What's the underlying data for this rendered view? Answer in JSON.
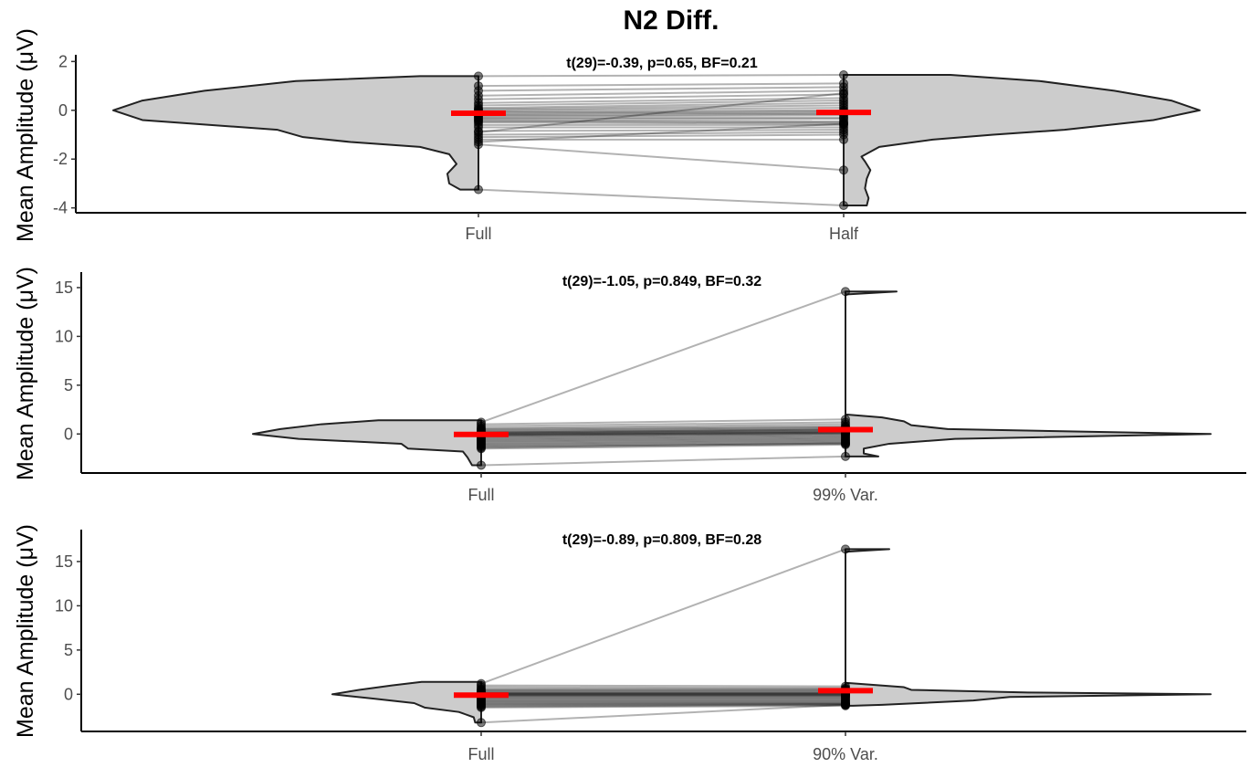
{
  "figure": {
    "title": "N2 Diff."
  },
  "chart_data": [
    {
      "type": "scatter",
      "subtype": "paired split-violin",
      "ylabel": "Mean Amplitude (μV)",
      "annotation": "t(29)=-0.39, p=0.65, BF=0.21",
      "categories": [
        "Full",
        "Half"
      ],
      "yticks": [
        -4,
        -2,
        0,
        2
      ],
      "ylim": [
        -4.2,
        2.2
      ],
      "means": [
        -0.12,
        -0.09
      ],
      "pairs": [
        [
          1.4,
          1.45
        ],
        [
          1.0,
          1.1
        ],
        [
          0.8,
          0.95
        ],
        [
          0.6,
          0.8
        ],
        [
          0.45,
          0.65
        ],
        [
          0.3,
          0.5
        ],
        [
          0.2,
          0.4
        ],
        [
          0.1,
          0.3
        ],
        [
          0.05,
          0.2
        ],
        [
          0.0,
          0.1
        ],
        [
          -0.05,
          0.0
        ],
        [
          -0.1,
          -0.05
        ],
        [
          -0.15,
          -0.1
        ],
        [
          -0.2,
          -0.15
        ],
        [
          -0.25,
          -0.2
        ],
        [
          -0.3,
          -0.3
        ],
        [
          -0.35,
          -0.35
        ],
        [
          -0.4,
          -0.45
        ],
        [
          -0.45,
          -0.5
        ],
        [
          -0.5,
          -0.55
        ],
        [
          -0.6,
          -0.6
        ],
        [
          -0.7,
          -0.7
        ],
        [
          -0.85,
          -0.8
        ],
        [
          -1.0,
          -0.9
        ],
        [
          -1.1,
          -1.0
        ],
        [
          -1.2,
          -1.2
        ],
        [
          -1.3,
          -0.55
        ],
        [
          -1.4,
          -2.45
        ],
        [
          -0.9,
          0.7
        ],
        [
          -3.25,
          -3.9
        ]
      ],
      "violin_left": [
        [
          1.4,
          0.16
        ],
        [
          1.2,
          0.5
        ],
        [
          0.8,
          0.75
        ],
        [
          0.4,
          0.92
        ],
        [
          0.0,
          1.0
        ],
        [
          -0.4,
          0.92
        ],
        [
          -0.8,
          0.55
        ],
        [
          -1.1,
          0.48
        ],
        [
          -1.3,
          0.35
        ],
        [
          -1.5,
          0.16
        ],
        [
          -1.8,
          0.08
        ],
        [
          -2.2,
          0.06
        ],
        [
          -2.6,
          0.085
        ],
        [
          -3.0,
          0.08
        ],
        [
          -3.25,
          0.05
        ]
      ],
      "violin_right": [
        [
          1.45,
          0.3
        ],
        [
          1.2,
          0.55
        ],
        [
          0.8,
          0.76
        ],
        [
          0.4,
          0.92
        ],
        [
          0.0,
          1.0
        ],
        [
          -0.4,
          0.87
        ],
        [
          -0.8,
          0.62
        ],
        [
          -1.0,
          0.42
        ],
        [
          -1.2,
          0.25
        ],
        [
          -1.5,
          0.1
        ],
        [
          -1.9,
          0.05
        ],
        [
          -2.1,
          0.06
        ],
        [
          -2.45,
          0.075
        ],
        [
          -2.8,
          0.065
        ],
        [
          -3.2,
          0.06
        ],
        [
          -3.6,
          0.07
        ],
        [
          -3.9,
          0.065
        ]
      ]
    },
    {
      "type": "scatter",
      "subtype": "paired split-violin",
      "ylabel": "Mean Amplitude (μV)",
      "annotation": "t(29)=-1.05, p=0.849, BF=0.32",
      "categories": [
        "Full",
        "99% Var."
      ],
      "yticks": [
        0,
        5,
        10,
        15
      ],
      "ylim": [
        -4.0,
        16.4
      ],
      "means": [
        -0.05,
        0.45
      ],
      "pairs": [
        [
          1.2,
          14.6
        ],
        [
          1.0,
          1.5
        ],
        [
          0.8,
          1.2
        ],
        [
          0.6,
          1.0
        ],
        [
          0.5,
          0.8
        ],
        [
          0.4,
          0.7
        ],
        [
          0.3,
          0.6
        ],
        [
          0.2,
          0.5
        ],
        [
          0.15,
          0.45
        ],
        [
          0.1,
          0.4
        ],
        [
          0.05,
          0.3
        ],
        [
          0.0,
          0.25
        ],
        [
          -0.05,
          0.2
        ],
        [
          -0.1,
          0.15
        ],
        [
          -0.15,
          0.1
        ],
        [
          -0.2,
          0.05
        ],
        [
          -0.3,
          0.0
        ],
        [
          -0.4,
          -0.1
        ],
        [
          -0.5,
          -0.2
        ],
        [
          -0.6,
          -0.3
        ],
        [
          -0.7,
          -0.4
        ],
        [
          -0.8,
          -0.5
        ],
        [
          -0.9,
          -0.6
        ],
        [
          -1.0,
          -0.7
        ],
        [
          -1.1,
          -0.8
        ],
        [
          -1.2,
          -0.9
        ],
        [
          -1.3,
          -1.0
        ],
        [
          -1.4,
          -0.95
        ],
        [
          -1.5,
          -1.1
        ],
        [
          -3.2,
          -2.3
        ]
      ],
      "violin_left": [
        [
          1.4,
          0.45
        ],
        [
          1.0,
          0.7
        ],
        [
          0.5,
          0.88
        ],
        [
          0.0,
          1.0
        ],
        [
          -0.5,
          0.8
        ],
        [
          -1.0,
          0.35
        ],
        [
          -1.5,
          0.32
        ],
        [
          -1.8,
          0.08
        ],
        [
          -2.4,
          0.06
        ],
        [
          -3.2,
          0.04
        ]
      ],
      "violin_right": [
        [
          14.6,
          0.14
        ],
        [
          14.3,
          0.0
        ],
        [
          2.0,
          0.0
        ],
        [
          1.7,
          0.1
        ],
        [
          1.3,
          0.16
        ],
        [
          0.9,
          0.18
        ],
        [
          0.5,
          0.28
        ],
        [
          0.0,
          1.0
        ],
        [
          -0.5,
          0.3
        ],
        [
          -1.0,
          0.12
        ],
        [
          -1.5,
          0.05
        ],
        [
          -2.0,
          0.05
        ],
        [
          -2.3,
          0.09
        ]
      ]
    },
    {
      "type": "scatter",
      "subtype": "paired split-violin",
      "ylabel": "Mean Amplitude (μV)",
      "annotation": "t(29)=-0.89, p=0.809, BF=0.28",
      "categories": [
        "Full",
        "90% Var."
      ],
      "yticks": [
        0,
        5,
        10,
        15
      ],
      "ylim": [
        -4.2,
        18.4
      ],
      "means": [
        -0.1,
        0.4
      ],
      "pairs": [
        [
          1.2,
          16.4
        ],
        [
          1.0,
          0.9
        ],
        [
          0.8,
          0.7
        ],
        [
          0.6,
          0.6
        ],
        [
          0.5,
          0.5
        ],
        [
          0.4,
          0.4
        ],
        [
          0.3,
          0.3
        ],
        [
          0.2,
          0.2
        ],
        [
          0.15,
          0.15
        ],
        [
          0.1,
          0.1
        ],
        [
          0.05,
          0.05
        ],
        [
          0.0,
          0.0
        ],
        [
          -0.05,
          -0.05
        ],
        [
          -0.1,
          -0.1
        ],
        [
          -0.15,
          -0.15
        ],
        [
          -0.2,
          -0.2
        ],
        [
          -0.3,
          -0.3
        ],
        [
          -0.4,
          -0.4
        ],
        [
          -0.5,
          -0.5
        ],
        [
          -0.6,
          -0.6
        ],
        [
          -0.7,
          -0.7
        ],
        [
          -0.8,
          -0.8
        ],
        [
          -0.9,
          -0.9
        ],
        [
          -1.0,
          -1.0
        ],
        [
          -1.1,
          -1.05
        ],
        [
          -1.2,
          -1.1
        ],
        [
          -1.3,
          -1.15
        ],
        [
          -1.4,
          -1.2
        ],
        [
          -1.5,
          -1.3
        ],
        [
          -3.2,
          -1.2
        ]
      ],
      "violin_left": [
        [
          1.4,
          0.4
        ],
        [
          1.0,
          0.6
        ],
        [
          0.5,
          0.82
        ],
        [
          0.0,
          1.0
        ],
        [
          -0.5,
          0.72
        ],
        [
          -1.0,
          0.45
        ],
        [
          -1.5,
          0.38
        ],
        [
          -2.0,
          0.15
        ],
        [
          -2.6,
          0.05
        ],
        [
          -3.2,
          0.04
        ]
      ],
      "violin_right": [
        [
          16.4,
          0.12
        ],
        [
          16.1,
          0.0
        ],
        [
          1.3,
          0.0
        ],
        [
          0.8,
          0.16
        ],
        [
          0.5,
          0.18
        ],
        [
          0.2,
          0.5
        ],
        [
          0.0,
          1.0
        ],
        [
          -0.3,
          0.45
        ],
        [
          -0.7,
          0.35
        ],
        [
          -1.0,
          0.2
        ],
        [
          -1.2,
          0.1
        ],
        [
          -1.3,
          0.02
        ]
      ]
    }
  ]
}
